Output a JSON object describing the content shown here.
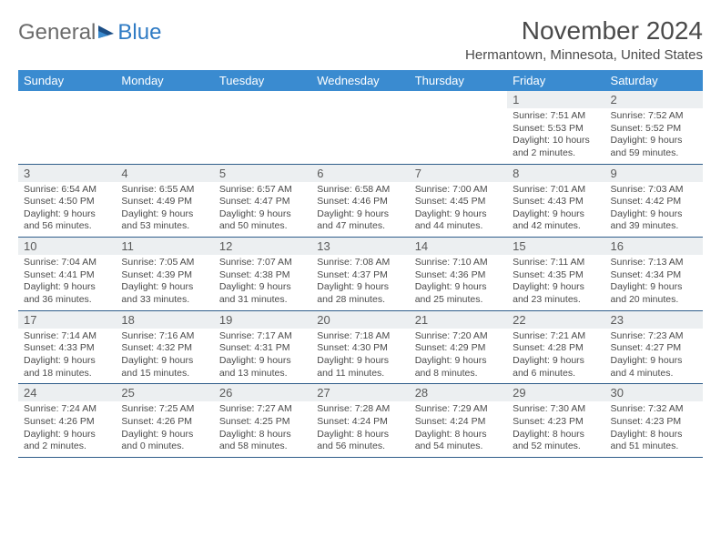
{
  "logo": {
    "text1": "General",
    "text2": "Blue"
  },
  "title": "November 2024",
  "location": "Hermantown, Minnesota, United States",
  "colors": {
    "header_bg": "#3a8bd0",
    "header_text": "#ffffff",
    "daynum_bg": "#eceff1",
    "border": "#2f5d8a",
    "text": "#4a4a4a",
    "logo_gray": "#6b6b6b",
    "logo_blue": "#2f7bc4"
  },
  "day_names": [
    "Sunday",
    "Monday",
    "Tuesday",
    "Wednesday",
    "Thursday",
    "Friday",
    "Saturday"
  ],
  "weeks": [
    [
      {
        "n": "",
        "sr": "",
        "ss": "",
        "d1": "",
        "d2": ""
      },
      {
        "n": "",
        "sr": "",
        "ss": "",
        "d1": "",
        "d2": ""
      },
      {
        "n": "",
        "sr": "",
        "ss": "",
        "d1": "",
        "d2": ""
      },
      {
        "n": "",
        "sr": "",
        "ss": "",
        "d1": "",
        "d2": ""
      },
      {
        "n": "",
        "sr": "",
        "ss": "",
        "d1": "",
        "d2": ""
      },
      {
        "n": "1",
        "sr": "Sunrise: 7:51 AM",
        "ss": "Sunset: 5:53 PM",
        "d1": "Daylight: 10 hours",
        "d2": "and 2 minutes."
      },
      {
        "n": "2",
        "sr": "Sunrise: 7:52 AM",
        "ss": "Sunset: 5:52 PM",
        "d1": "Daylight: 9 hours",
        "d2": "and 59 minutes."
      }
    ],
    [
      {
        "n": "3",
        "sr": "Sunrise: 6:54 AM",
        "ss": "Sunset: 4:50 PM",
        "d1": "Daylight: 9 hours",
        "d2": "and 56 minutes."
      },
      {
        "n": "4",
        "sr": "Sunrise: 6:55 AM",
        "ss": "Sunset: 4:49 PM",
        "d1": "Daylight: 9 hours",
        "d2": "and 53 minutes."
      },
      {
        "n": "5",
        "sr": "Sunrise: 6:57 AM",
        "ss": "Sunset: 4:47 PM",
        "d1": "Daylight: 9 hours",
        "d2": "and 50 minutes."
      },
      {
        "n": "6",
        "sr": "Sunrise: 6:58 AM",
        "ss": "Sunset: 4:46 PM",
        "d1": "Daylight: 9 hours",
        "d2": "and 47 minutes."
      },
      {
        "n": "7",
        "sr": "Sunrise: 7:00 AM",
        "ss": "Sunset: 4:45 PM",
        "d1": "Daylight: 9 hours",
        "d2": "and 44 minutes."
      },
      {
        "n": "8",
        "sr": "Sunrise: 7:01 AM",
        "ss": "Sunset: 4:43 PM",
        "d1": "Daylight: 9 hours",
        "d2": "and 42 minutes."
      },
      {
        "n": "9",
        "sr": "Sunrise: 7:03 AM",
        "ss": "Sunset: 4:42 PM",
        "d1": "Daylight: 9 hours",
        "d2": "and 39 minutes."
      }
    ],
    [
      {
        "n": "10",
        "sr": "Sunrise: 7:04 AM",
        "ss": "Sunset: 4:41 PM",
        "d1": "Daylight: 9 hours",
        "d2": "and 36 minutes."
      },
      {
        "n": "11",
        "sr": "Sunrise: 7:05 AM",
        "ss": "Sunset: 4:39 PM",
        "d1": "Daylight: 9 hours",
        "d2": "and 33 minutes."
      },
      {
        "n": "12",
        "sr": "Sunrise: 7:07 AM",
        "ss": "Sunset: 4:38 PM",
        "d1": "Daylight: 9 hours",
        "d2": "and 31 minutes."
      },
      {
        "n": "13",
        "sr": "Sunrise: 7:08 AM",
        "ss": "Sunset: 4:37 PM",
        "d1": "Daylight: 9 hours",
        "d2": "and 28 minutes."
      },
      {
        "n": "14",
        "sr": "Sunrise: 7:10 AM",
        "ss": "Sunset: 4:36 PM",
        "d1": "Daylight: 9 hours",
        "d2": "and 25 minutes."
      },
      {
        "n": "15",
        "sr": "Sunrise: 7:11 AM",
        "ss": "Sunset: 4:35 PM",
        "d1": "Daylight: 9 hours",
        "d2": "and 23 minutes."
      },
      {
        "n": "16",
        "sr": "Sunrise: 7:13 AM",
        "ss": "Sunset: 4:34 PM",
        "d1": "Daylight: 9 hours",
        "d2": "and 20 minutes."
      }
    ],
    [
      {
        "n": "17",
        "sr": "Sunrise: 7:14 AM",
        "ss": "Sunset: 4:33 PM",
        "d1": "Daylight: 9 hours",
        "d2": "and 18 minutes."
      },
      {
        "n": "18",
        "sr": "Sunrise: 7:16 AM",
        "ss": "Sunset: 4:32 PM",
        "d1": "Daylight: 9 hours",
        "d2": "and 15 minutes."
      },
      {
        "n": "19",
        "sr": "Sunrise: 7:17 AM",
        "ss": "Sunset: 4:31 PM",
        "d1": "Daylight: 9 hours",
        "d2": "and 13 minutes."
      },
      {
        "n": "20",
        "sr": "Sunrise: 7:18 AM",
        "ss": "Sunset: 4:30 PM",
        "d1": "Daylight: 9 hours",
        "d2": "and 11 minutes."
      },
      {
        "n": "21",
        "sr": "Sunrise: 7:20 AM",
        "ss": "Sunset: 4:29 PM",
        "d1": "Daylight: 9 hours",
        "d2": "and 8 minutes."
      },
      {
        "n": "22",
        "sr": "Sunrise: 7:21 AM",
        "ss": "Sunset: 4:28 PM",
        "d1": "Daylight: 9 hours",
        "d2": "and 6 minutes."
      },
      {
        "n": "23",
        "sr": "Sunrise: 7:23 AM",
        "ss": "Sunset: 4:27 PM",
        "d1": "Daylight: 9 hours",
        "d2": "and 4 minutes."
      }
    ],
    [
      {
        "n": "24",
        "sr": "Sunrise: 7:24 AM",
        "ss": "Sunset: 4:26 PM",
        "d1": "Daylight: 9 hours",
        "d2": "and 2 minutes."
      },
      {
        "n": "25",
        "sr": "Sunrise: 7:25 AM",
        "ss": "Sunset: 4:26 PM",
        "d1": "Daylight: 9 hours",
        "d2": "and 0 minutes."
      },
      {
        "n": "26",
        "sr": "Sunrise: 7:27 AM",
        "ss": "Sunset: 4:25 PM",
        "d1": "Daylight: 8 hours",
        "d2": "and 58 minutes."
      },
      {
        "n": "27",
        "sr": "Sunrise: 7:28 AM",
        "ss": "Sunset: 4:24 PM",
        "d1": "Daylight: 8 hours",
        "d2": "and 56 minutes."
      },
      {
        "n": "28",
        "sr": "Sunrise: 7:29 AM",
        "ss": "Sunset: 4:24 PM",
        "d1": "Daylight: 8 hours",
        "d2": "and 54 minutes."
      },
      {
        "n": "29",
        "sr": "Sunrise: 7:30 AM",
        "ss": "Sunset: 4:23 PM",
        "d1": "Daylight: 8 hours",
        "d2": "and 52 minutes."
      },
      {
        "n": "30",
        "sr": "Sunrise: 7:32 AM",
        "ss": "Sunset: 4:23 PM",
        "d1": "Daylight: 8 hours",
        "d2": "and 51 minutes."
      }
    ]
  ]
}
